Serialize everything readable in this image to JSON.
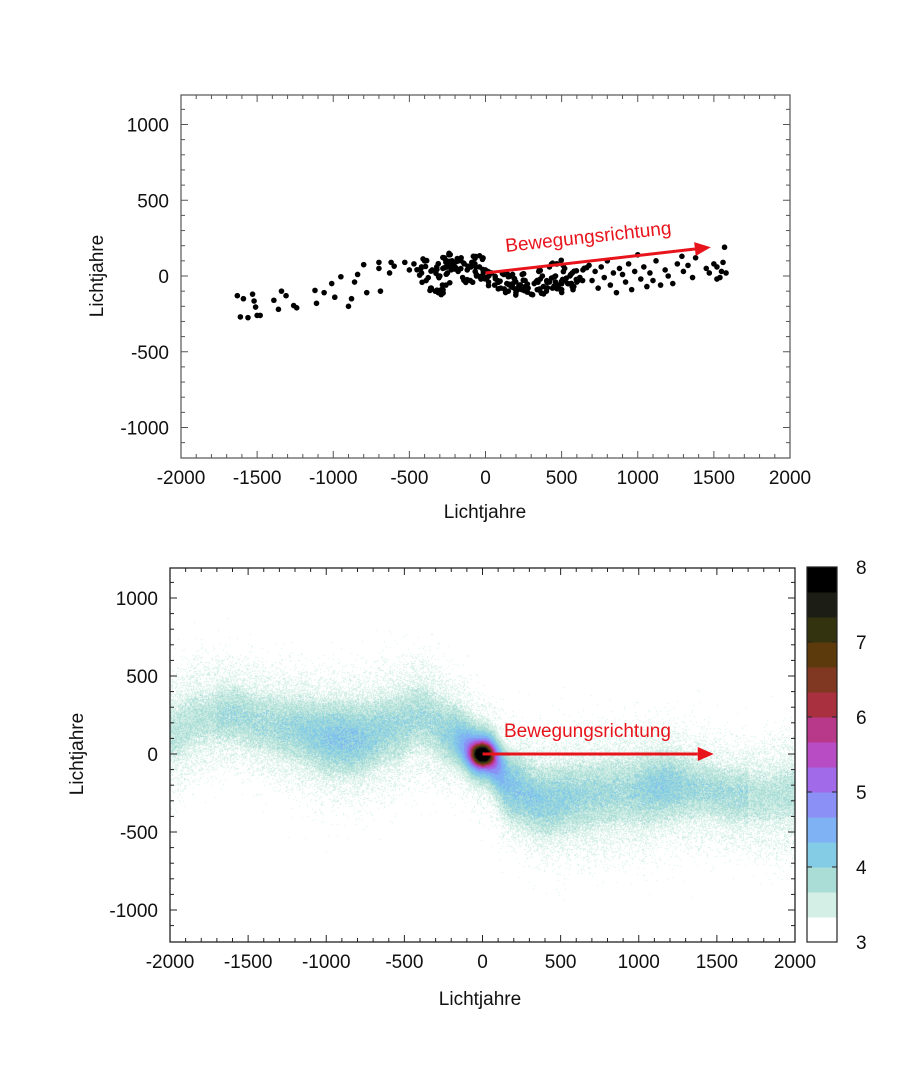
{
  "chart_data": [
    {
      "type": "scatter",
      "title": "",
      "xlabel": "Lichtjahre",
      "ylabel": "Lichtjahre",
      "xlim": [
        -2000,
        2000
      ],
      "ylim": [
        -1200,
        1200
      ],
      "xticks": [
        "-2000",
        "-1500",
        "-1000",
        "-500",
        "0",
        "500",
        "1000",
        "1500",
        "2000"
      ],
      "yticks": [
        "1000",
        "500",
        "0",
        "-500",
        "-1000"
      ],
      "xtick_values": [
        -2000,
        -1500,
        -1000,
        -500,
        0,
        500,
        1000,
        1500,
        2000
      ],
      "ytick_values": [
        1000,
        500,
        0,
        -500,
        -1000
      ],
      "grid": false,
      "marker_color": "#000000",
      "annotation": {
        "text": "Bewegungsrichtung",
        "color": "#e8141c",
        "arrow_from": [
          0,
          20
        ],
        "arrow_to": [
          1480,
          190
        ]
      },
      "points": [
        [
          -1630,
          -130
        ],
        [
          -1590,
          -150
        ],
        [
          -1530,
          -120
        ],
        [
          -1520,
          -165
        ],
        [
          -1510,
          -205
        ],
        [
          -1610,
          -270
        ],
        [
          -1560,
          -275
        ],
        [
          -1500,
          -260
        ],
        [
          -1480,
          -260
        ],
        [
          -1390,
          -160
        ],
        [
          -1340,
          -100
        ],
        [
          -1360,
          -220
        ],
        [
          -1310,
          -130
        ],
        [
          -1260,
          -195
        ],
        [
          -1240,
          -210
        ],
        [
          -1120,
          -95
        ],
        [
          -1110,
          -180
        ],
        [
          -1060,
          -110
        ],
        [
          -1010,
          -50
        ],
        [
          -990,
          -140
        ],
        [
          -950,
          -5
        ],
        [
          -900,
          -200
        ],
        [
          -860,
          -40
        ],
        [
          -880,
          -150
        ],
        [
          -840,
          10
        ],
        [
          -800,
          75
        ],
        [
          -780,
          -110
        ],
        [
          -700,
          50
        ],
        [
          -690,
          -100
        ],
        [
          -700,
          90
        ],
        [
          -620,
          90
        ],
        [
          -630,
          20
        ],
        [
          -600,
          65
        ],
        [
          -530,
          90
        ],
        [
          -500,
          40
        ],
        [
          -470,
          80
        ],
        [
          -420,
          20
        ],
        [
          -400,
          100
        ],
        [
          -330,
          -100
        ],
        [
          -310,
          -110
        ],
        [
          -290,
          -90
        ],
        [
          -260,
          -60
        ],
        [
          -280,
          50
        ],
        [
          -250,
          20
        ],
        [
          -230,
          70
        ],
        [
          -420,
          60
        ],
        [
          -390,
          -30
        ],
        [
          -360,
          -80
        ],
        [
          -350,
          40
        ],
        [
          -320,
          60
        ],
        [
          -300,
          0
        ],
        [
          -270,
          120
        ],
        [
          -260,
          90
        ],
        [
          -240,
          140
        ],
        [
          -220,
          100
        ],
        [
          -200,
          60
        ],
        [
          -180,
          30
        ],
        [
          -160,
          120
        ],
        [
          -150,
          -10
        ],
        [
          -140,
          80
        ],
        [
          -120,
          40
        ],
        [
          -100,
          -30
        ],
        [
          -90,
          90
        ],
        [
          -80,
          130
        ],
        [
          -60,
          10
        ],
        [
          -40,
          60
        ],
        [
          -30,
          -20
        ],
        [
          -20,
          110
        ],
        [
          0,
          40
        ],
        [
          10,
          -10
        ],
        [
          20,
          -40
        ],
        [
          40,
          20
        ],
        [
          60,
          -60
        ],
        [
          80,
          -30
        ],
        [
          100,
          -80
        ],
        [
          120,
          10
        ],
        [
          140,
          -50
        ],
        [
          150,
          -100
        ],
        [
          170,
          -70
        ],
        [
          190,
          -20
        ],
        [
          200,
          -110
        ],
        [
          220,
          -60
        ],
        [
          240,
          -90
        ],
        [
          260,
          -30
        ],
        [
          280,
          -80
        ],
        [
          300,
          -120
        ],
        [
          320,
          -50
        ],
        [
          340,
          -90
        ],
        [
          360,
          -20
        ],
        [
          380,
          -70
        ],
        [
          400,
          -100
        ],
        [
          420,
          -40
        ],
        [
          440,
          -80
        ],
        [
          460,
          0
        ],
        [
          480,
          -60
        ],
        [
          500,
          -90
        ],
        [
          520,
          -30
        ],
        [
          540,
          -50
        ],
        [
          560,
          10
        ],
        [
          580,
          -70
        ],
        [
          600,
          -40
        ],
        [
          150,
          -5
        ],
        [
          250,
          15
        ],
        [
          350,
          30
        ],
        [
          420,
          60
        ],
        [
          470,
          80
        ],
        [
          520,
          50
        ],
        [
          570,
          20
        ],
        [
          620,
          -10
        ],
        [
          640,
          40
        ],
        [
          680,
          70
        ],
        [
          700,
          -30
        ],
        [
          720,
          30
        ],
        [
          740,
          -80
        ],
        [
          760,
          60
        ],
        [
          780,
          -10
        ],
        [
          800,
          100
        ],
        [
          820,
          -60
        ],
        [
          840,
          20
        ],
        [
          860,
          -110
        ],
        [
          880,
          50
        ],
        [
          900,
          10
        ],
        [
          920,
          -40
        ],
        [
          940,
          80
        ],
        [
          960,
          -90
        ],
        [
          980,
          30
        ],
        [
          1000,
          140
        ],
        [
          1020,
          -20
        ],
        [
          1040,
          60
        ],
        [
          1060,
          -70
        ],
        [
          1080,
          20
        ],
        [
          1100,
          -30
        ],
        [
          1120,
          100
        ],
        [
          1150,
          -60
        ],
        [
          1180,
          40
        ],
        [
          1200,
          0
        ],
        [
          1230,
          -50
        ],
        [
          1260,
          80
        ],
        [
          1290,
          130
        ],
        [
          1300,
          30
        ],
        [
          1330,
          70
        ],
        [
          1360,
          -10
        ],
        [
          1380,
          120
        ],
        [
          1450,
          50
        ],
        [
          1470,
          20
        ],
        [
          1500,
          80
        ],
        [
          1520,
          60
        ],
        [
          1540,
          -10
        ],
        [
          1550,
          30
        ],
        [
          1560,
          90
        ],
        [
          1570,
          190
        ],
        [
          1580,
          20
        ],
        [
          1520,
          -20
        ]
      ]
    },
    {
      "type": "heatmap",
      "title": "",
      "xlabel": "Lichtjahre",
      "ylabel": "Lichtjahre",
      "xlim": [
        -2000,
        2000
      ],
      "ylim": [
        -1200,
        1200
      ],
      "xticks": [
        "-2000",
        "-1500",
        "-1000",
        "-500",
        "0",
        "500",
        "1000",
        "1500",
        "2000"
      ],
      "yticks": [
        "1000",
        "500",
        "0",
        "-500",
        "-1000"
      ],
      "xtick_values": [
        -2000,
        -1500,
        -1000,
        -500,
        0,
        500,
        1000,
        1500,
        2000
      ],
      "ytick_values": [
        1000,
        500,
        0,
        -500,
        -1000
      ],
      "grid": false,
      "colorbar": {
        "range": [
          3,
          8
        ],
        "ticks": [
          "8",
          "7",
          "6",
          "5",
          "4",
          "3"
        ],
        "tick_values": [
          8,
          7,
          6,
          5,
          4,
          3
        ],
        "colors_bottom_to_top": [
          "#ffffff",
          "#d4efe6",
          "#a9ddd6",
          "#84cbe6",
          "#7fb2f4",
          "#8a90f5",
          "#a06ae8",
          "#b84cc4",
          "#b8388a",
          "#a8303f",
          "#803822",
          "#5c3a0c",
          "#33330f",
          "#1c1e16",
          "#000000"
        ]
      },
      "density_centerline": {
        "x": [
          -2000,
          -1800,
          -1600,
          -1400,
          -1200,
          -1000,
          -800,
          -600,
          -400,
          -200,
          0,
          200,
          400,
          600,
          800,
          1000,
          1200,
          1400,
          1600,
          1800,
          2000
        ],
        "y": [
          130,
          230,
          260,
          200,
          160,
          110,
          100,
          160,
          240,
          150,
          0,
          -230,
          -300,
          -270,
          -250,
          -230,
          -200,
          -220,
          -260,
          -270,
          -260
        ]
      },
      "peak": {
        "x": 0,
        "y": 0,
        "value": 8
      },
      "annotation": {
        "text": "Bewegungsrichtung",
        "color": "#e8141c",
        "arrow_from": [
          0,
          0
        ],
        "arrow_to": [
          1480,
          0
        ]
      }
    }
  ]
}
